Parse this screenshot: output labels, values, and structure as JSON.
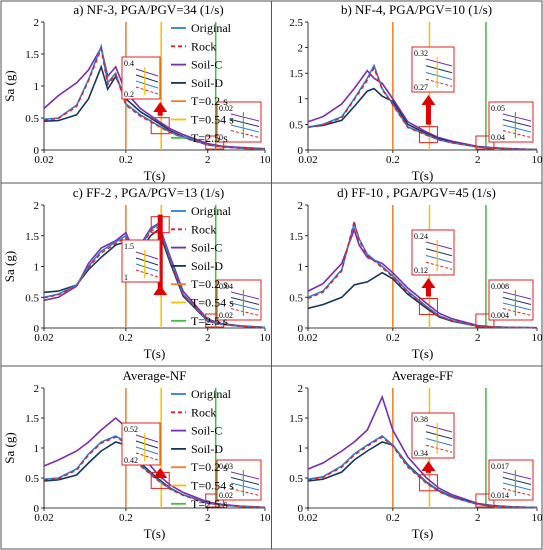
{
  "figure": {
    "border_color": "#555555",
    "line_colors": {
      "Original": "#2e7fd6",
      "Rock": "#e02020",
      "Soil-C": "#7b2cb3",
      "Soil-D": "#17375e",
      "T=0.2 s": "#ef7d22",
      "T=0.54 s": "#f5c000",
      "T=2.5 s": "#3fbf3f"
    },
    "inset_border_color": "#e02020",
    "arrow_color": "#e00000"
  },
  "chart_data": [
    {
      "type": "line",
      "title": "a) NF-3, PGA/PGV=34 (1/s)",
      "xlabel": "T(s)",
      "ylabel": "Sa (g)",
      "xscale": "log",
      "xlim": [
        0.02,
        10
      ],
      "ylim": [
        0,
        2
      ],
      "xticks": [
        "0.02",
        "0.2",
        "2",
        "10"
      ],
      "yticks": [
        "0",
        "0.5",
        "1",
        "1.5",
        "2"
      ],
      "legend": [
        "Original",
        "Rock",
        "Soil-C",
        "Soil-D",
        "T=0.2 s",
        "T=0.54 s",
        "T=2.5 s"
      ],
      "vlines": [
        0.2,
        0.54,
        2.5
      ],
      "x": [
        0.02,
        0.03,
        0.05,
        0.07,
        0.1,
        0.12,
        0.15,
        0.2,
        0.3,
        0.5,
        0.7,
        1,
        2,
        3,
        5,
        10
      ],
      "series": [
        {
          "name": "Original",
          "values": [
            0.48,
            0.5,
            0.7,
            1.1,
            1.62,
            1.05,
            1.2,
            0.72,
            0.55,
            0.38,
            0.28,
            0.2,
            0.08,
            0.05,
            0.03,
            0.01
          ]
        },
        {
          "name": "Rock",
          "values": [
            0.47,
            0.49,
            0.68,
            1.08,
            1.58,
            1.02,
            1.18,
            0.7,
            0.53,
            0.37,
            0.27,
            0.19,
            0.08,
            0.05,
            0.03,
            0.01
          ]
        },
        {
          "name": "Soil-C",
          "values": [
            0.65,
            0.85,
            1.05,
            1.25,
            1.6,
            1.15,
            1.3,
            0.9,
            0.65,
            0.45,
            0.33,
            0.24,
            0.1,
            0.06,
            0.04,
            0.02
          ]
        },
        {
          "name": "Soil-D",
          "values": [
            0.45,
            0.46,
            0.55,
            0.8,
            1.3,
            0.95,
            1.15,
            0.8,
            0.6,
            0.42,
            0.3,
            0.21,
            0.08,
            0.05,
            0.03,
            0.01
          ]
        }
      ],
      "insets": [
        {
          "yticks": [
            "0.4",
            "0.2"
          ]
        },
        {
          "yticks": [
            "0.02",
            "0"
          ]
        }
      ]
    },
    {
      "type": "line",
      "title": "b) NF-4, PGA/PGV=10 (1/s)",
      "xlabel": "T(s)",
      "ylabel": "",
      "xscale": "log",
      "xlim": [
        0.02,
        10
      ],
      "ylim": [
        0,
        2.5
      ],
      "xticks": [
        "0.02",
        "0.2",
        "2",
        "10"
      ],
      "yticks": [
        "0",
        "0.5",
        "1",
        "1.5",
        "2",
        "2.5"
      ],
      "vlines": [
        0.2,
        0.54,
        2.5
      ],
      "x": [
        0.02,
        0.03,
        0.05,
        0.07,
        0.1,
        0.12,
        0.15,
        0.2,
        0.3,
        0.5,
        0.7,
        1,
        2,
        3,
        5,
        10
      ],
      "series": [
        {
          "name": "Original",
          "values": [
            0.45,
            0.5,
            0.65,
            1.0,
            1.4,
            1.65,
            1.2,
            0.9,
            0.45,
            0.3,
            0.2,
            0.14,
            0.06,
            0.04,
            0.02,
            0.01
          ]
        },
        {
          "name": "Rock",
          "values": [
            0.44,
            0.49,
            0.63,
            0.98,
            1.36,
            1.6,
            1.18,
            0.88,
            0.44,
            0.29,
            0.2,
            0.14,
            0.06,
            0.04,
            0.02,
            0.01
          ]
        },
        {
          "name": "Soil-C",
          "values": [
            0.55,
            0.65,
            0.9,
            1.2,
            1.55,
            1.4,
            1.3,
            1.0,
            0.55,
            0.35,
            0.24,
            0.17,
            0.07,
            0.045,
            0.025,
            0.01
          ]
        },
        {
          "name": "Soil-D",
          "values": [
            0.45,
            0.48,
            0.58,
            0.85,
            1.15,
            1.2,
            1.05,
            0.95,
            0.5,
            0.32,
            0.22,
            0.15,
            0.06,
            0.04,
            0.02,
            0.01
          ]
        }
      ],
      "insets": [
        {
          "yticks": [
            "0.32",
            "0.27"
          ]
        },
        {
          "yticks": [
            "0.05",
            "0.04"
          ]
        }
      ]
    },
    {
      "type": "line",
      "title": "c) FF-2 , PGA/PGV=13 (1/s)",
      "xlabel": "T(s)",
      "ylabel": "Sa (g)",
      "xscale": "log",
      "xlim": [
        0.02,
        10
      ],
      "ylim": [
        0,
        2
      ],
      "xticks": [
        "0.02",
        "0.2",
        "2",
        "10"
      ],
      "yticks": [
        "0",
        "0.5",
        "1",
        "1.5",
        "2"
      ],
      "legend": [
        "Original",
        "Rock",
        "Soil-C",
        "Soil-D",
        "T=0.2 s",
        "T=0.54 s",
        "T=2.5 s"
      ],
      "vlines": [
        0.2,
        0.54,
        2.5
      ],
      "x": [
        0.02,
        0.03,
        0.05,
        0.07,
        0.1,
        0.15,
        0.2,
        0.25,
        0.3,
        0.4,
        0.5,
        0.7,
        1,
        2,
        3,
        5,
        10
      ],
      "series": [
        {
          "name": "Original",
          "values": [
            0.5,
            0.55,
            0.7,
            1.0,
            1.25,
            1.4,
            1.5,
            1.2,
            1.3,
            1.6,
            1.68,
            1.1,
            0.55,
            0.12,
            0.06,
            0.03,
            0.01
          ]
        },
        {
          "name": "Rock",
          "values": [
            0.49,
            0.54,
            0.68,
            0.98,
            1.22,
            1.37,
            1.47,
            1.18,
            1.28,
            1.57,
            1.64,
            1.08,
            0.54,
            0.12,
            0.06,
            0.03,
            0.01
          ]
        },
        {
          "name": "Soil-C",
          "values": [
            0.45,
            0.5,
            0.68,
            1.05,
            1.3,
            1.42,
            1.55,
            1.25,
            1.35,
            1.62,
            1.7,
            1.15,
            0.6,
            0.14,
            0.07,
            0.035,
            0.01
          ]
        },
        {
          "name": "Soil-D",
          "values": [
            0.58,
            0.6,
            0.7,
            0.95,
            1.15,
            1.35,
            1.4,
            1.1,
            1.25,
            1.5,
            1.6,
            1.05,
            0.52,
            0.11,
            0.06,
            0.03,
            0.01
          ]
        }
      ],
      "insets": [
        {
          "yticks": [
            "1.5",
            "1"
          ]
        },
        {
          "yticks": [
            "0.04",
            "0.02"
          ]
        }
      ]
    },
    {
      "type": "line",
      "title": "d) FF-10 , PGA/PGV=45 (1/s)",
      "xlabel": "T(s)",
      "ylabel": "",
      "xscale": "log",
      "xlim": [
        0.02,
        10
      ],
      "ylim": [
        0,
        2
      ],
      "xticks": [
        "0.02",
        "0.2",
        "2",
        "10"
      ],
      "yticks": [
        "0",
        "0.5",
        "1",
        "1.5",
        "2"
      ],
      "vlines": [
        0.2,
        0.54,
        2.5
      ],
      "x": [
        0.02,
        0.03,
        0.05,
        0.07,
        0.08,
        0.1,
        0.15,
        0.2,
        0.3,
        0.5,
        0.7,
        1,
        2,
        3,
        5,
        10
      ],
      "series": [
        {
          "name": "Original",
          "values": [
            0.5,
            0.6,
            0.95,
            1.7,
            1.45,
            1.2,
            1.0,
            0.85,
            0.6,
            0.35,
            0.2,
            0.12,
            0.03,
            0.015,
            0.008,
            0.004
          ]
        },
        {
          "name": "Rock",
          "values": [
            0.48,
            0.58,
            0.93,
            1.74,
            1.42,
            1.18,
            0.98,
            0.83,
            0.58,
            0.34,
            0.19,
            0.12,
            0.03,
            0.015,
            0.008,
            0.004
          ]
        },
        {
          "name": "Soil-C",
          "values": [
            0.6,
            0.72,
            1.05,
            1.6,
            1.35,
            1.15,
            1.05,
            0.9,
            0.65,
            0.4,
            0.24,
            0.15,
            0.04,
            0.02,
            0.01,
            0.005
          ]
        },
        {
          "name": "Soil-D",
          "values": [
            0.32,
            0.38,
            0.5,
            0.7,
            0.72,
            0.75,
            0.9,
            0.8,
            0.55,
            0.32,
            0.18,
            0.11,
            0.03,
            0.015,
            0.008,
            0.004
          ]
        }
      ],
      "insets": [
        {
          "yticks": [
            "0.24",
            "0.12"
          ]
        },
        {
          "yticks": [
            "0.008",
            "0.004"
          ]
        }
      ]
    },
    {
      "type": "line",
      "title": "Average-NF",
      "xlabel": "T(s)",
      "ylabel": "Sa (g)",
      "xscale": "log",
      "xlim": [
        0.02,
        10
      ],
      "ylim": [
        0,
        2
      ],
      "xticks": [
        "0.02",
        "0.2",
        "2",
        "10"
      ],
      "yticks": [
        "0",
        "0.5",
        "1",
        "1.5",
        "2"
      ],
      "legend": [
        "Original",
        "Rock",
        "Soil-C",
        "Soil-D",
        "T=0.2 s",
        "T=0.54 s",
        "T=2.5 s"
      ],
      "vlines": [
        0.2,
        0.54,
        2.5
      ],
      "x": [
        0.02,
        0.03,
        0.05,
        0.07,
        0.1,
        0.15,
        0.2,
        0.3,
        0.5,
        0.7,
        1,
        2,
        3,
        5,
        10
      ],
      "series": [
        {
          "name": "Original",
          "values": [
            0.48,
            0.5,
            0.65,
            0.9,
            1.1,
            1.2,
            1.1,
            0.72,
            0.46,
            0.32,
            0.22,
            0.08,
            0.05,
            0.025,
            0.01
          ]
        },
        {
          "name": "Rock",
          "values": [
            0.47,
            0.49,
            0.63,
            0.88,
            1.08,
            1.18,
            1.08,
            0.7,
            0.45,
            0.31,
            0.21,
            0.08,
            0.05,
            0.025,
            0.01
          ]
        },
        {
          "name": "Soil-C",
          "values": [
            0.7,
            0.8,
            0.95,
            1.1,
            1.3,
            1.5,
            1.35,
            0.9,
            0.55,
            0.38,
            0.26,
            0.1,
            0.06,
            0.03,
            0.012
          ]
        },
        {
          "name": "Soil-D",
          "values": [
            0.45,
            0.47,
            0.55,
            0.75,
            0.95,
            1.1,
            1.05,
            0.75,
            0.48,
            0.33,
            0.22,
            0.08,
            0.05,
            0.025,
            0.01
          ]
        }
      ],
      "insets": [
        {
          "yticks": [
            "0.52",
            "0.42"
          ]
        },
        {
          "yticks": [
            "0.03",
            "0.02"
          ]
        }
      ]
    },
    {
      "type": "line",
      "title": "Average-FF",
      "xlabel": "T(s)",
      "ylabel": "",
      "xscale": "log",
      "xlim": [
        0.02,
        10
      ],
      "ylim": [
        0,
        2
      ],
      "xticks": [
        "0.02",
        "0.2",
        "2",
        "10"
      ],
      "yticks": [
        "0",
        "0.5",
        "1",
        "1.5",
        "2"
      ],
      "vlines": [
        0.2,
        0.54,
        2.5
      ],
      "x": [
        0.02,
        0.03,
        0.05,
        0.07,
        0.1,
        0.15,
        0.2,
        0.3,
        0.5,
        0.7,
        1,
        2,
        3,
        5,
        10
      ],
      "series": [
        {
          "name": "Original",
          "values": [
            0.48,
            0.52,
            0.7,
            0.9,
            1.05,
            1.2,
            1.05,
            0.7,
            0.42,
            0.28,
            0.18,
            0.06,
            0.03,
            0.015,
            0.006
          ]
        },
        {
          "name": "Rock",
          "values": [
            0.47,
            0.51,
            0.68,
            0.88,
            1.03,
            1.18,
            1.03,
            0.68,
            0.41,
            0.27,
            0.18,
            0.06,
            0.03,
            0.015,
            0.006
          ]
        },
        {
          "name": "Soil-C",
          "values": [
            0.65,
            0.75,
            0.95,
            1.1,
            1.3,
            1.85,
            1.3,
            0.85,
            0.5,
            0.33,
            0.22,
            0.075,
            0.04,
            0.02,
            0.008
          ]
        },
        {
          "name": "Soil-D",
          "values": [
            0.45,
            0.48,
            0.6,
            0.8,
            0.95,
            1.1,
            1.05,
            0.72,
            0.43,
            0.29,
            0.19,
            0.065,
            0.035,
            0.017,
            0.006
          ]
        }
      ],
      "insets": [
        {
          "yticks": [
            "0.38",
            "0.34"
          ]
        },
        {
          "yticks": [
            "0.017",
            "0.014"
          ]
        }
      ]
    }
  ]
}
